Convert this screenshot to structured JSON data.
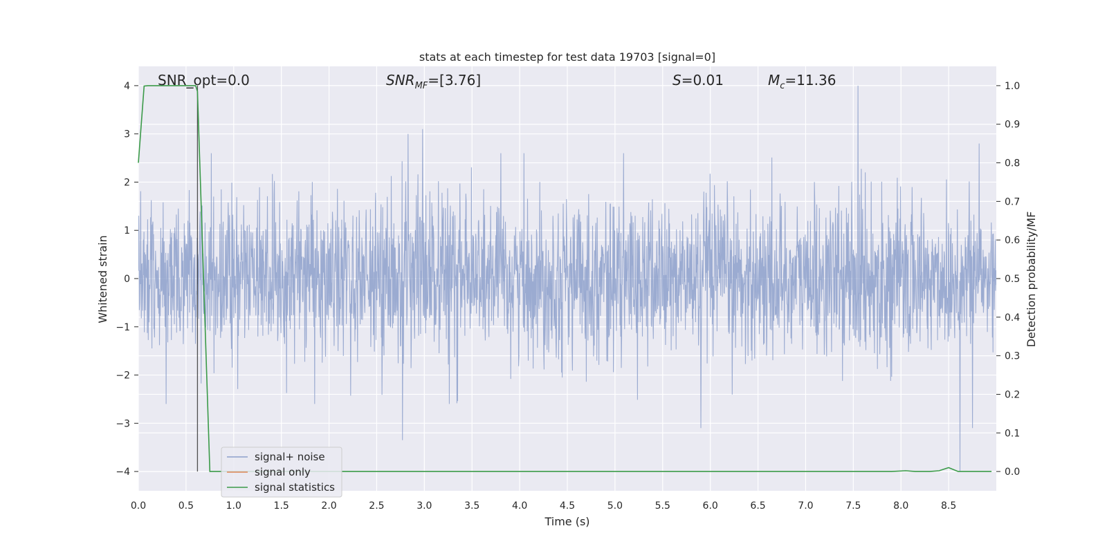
{
  "chart_data": {
    "type": "line",
    "title": "stats at each timestep for test data 19703 [signal=0]",
    "xlabel": "Time (s)",
    "ylabel": "Whitened strain",
    "y2label": "Detection probability/MF",
    "xlim": [
      0.0,
      9.0
    ],
    "ylim": [
      -4.4,
      4.4
    ],
    "y2lim": [
      -0.05,
      1.05
    ],
    "x_ticks": [
      "0.0",
      "0.5",
      "1.0",
      "1.5",
      "2.0",
      "2.5",
      "3.0",
      "3.5",
      "4.0",
      "4.5",
      "5.0",
      "5.5",
      "6.0",
      "6.5",
      "7.0",
      "7.5",
      "8.0",
      "8.5"
    ],
    "y_ticks": [
      "4",
      "3",
      "2",
      "1",
      "0",
      "−1",
      "−2",
      "−3",
      "−4"
    ],
    "y2_ticks": [
      "1.0",
      "0.9",
      "0.8",
      "0.7",
      "0.6",
      "0.5",
      "0.4",
      "0.3",
      "0.2",
      "0.1",
      "0.0"
    ],
    "grid": true,
    "legend_position": "lower-left",
    "annotations": {
      "snr_opt": "SNR_opt=0.0",
      "snr_mf_main": "SNR",
      "snr_mf_sub": "MF",
      "snr_mf_value": "=[3.76]",
      "s_var": "S",
      "s_value": "=0.01",
      "mc_main": "M",
      "mc_sub": "c",
      "mc_value": "=11.36"
    },
    "marker_line_x": 0.62,
    "series": [
      {
        "name": "signal+ noise",
        "color": "#8da0cb",
        "axis": "left",
        "noise_sigma": 0.8,
        "duration": 9.0,
        "notable_peaks": [
          {
            "x": 2.83,
            "y": 3.0
          },
          {
            "x": 2.98,
            "y": 3.1
          },
          {
            "x": 7.55,
            "y": 4.0
          },
          {
            "x": 8.82,
            "y": 2.8
          },
          {
            "x": 2.77,
            "y": -3.35
          },
          {
            "x": 5.9,
            "y": -3.1
          },
          {
            "x": 8.62,
            "y": -4.0
          },
          {
            "x": 8.75,
            "y": -3.1
          }
        ]
      },
      {
        "name": "signal only",
        "color": "#dd8452",
        "axis": "left",
        "values": []
      },
      {
        "name": "signal statistics",
        "color": "#3a9a48",
        "axis": "right",
        "x": [
          0.0,
          0.06,
          0.1,
          0.15,
          0.6,
          0.62,
          0.75,
          7.9,
          8.05,
          8.15,
          8.3,
          8.4,
          8.5,
          8.6,
          8.95
        ],
        "y": [
          0.8,
          0.999,
          1.0,
          1.0,
          1.0,
          0.985,
          0.0,
          0.0,
          0.002,
          0.0,
          0.0,
          0.002,
          0.01,
          0.0,
          0.0
        ]
      }
    ]
  }
}
